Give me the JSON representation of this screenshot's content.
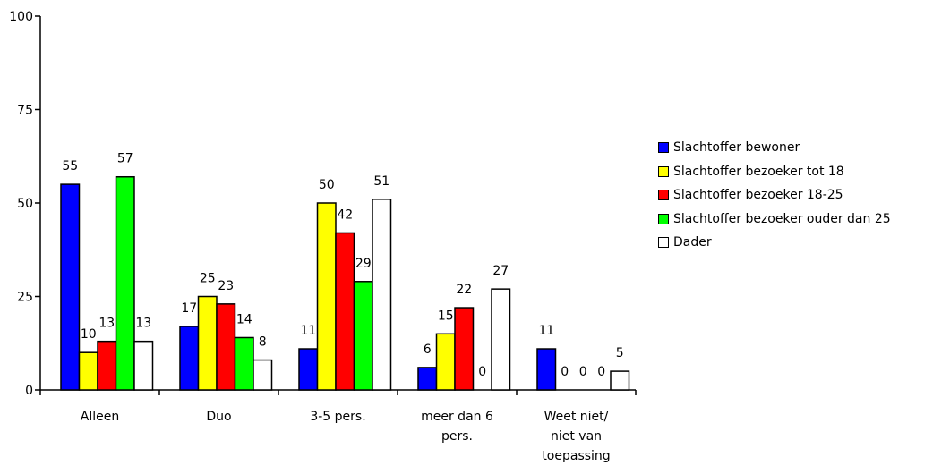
{
  "chart_data": {
    "type": "bar",
    "title": "",
    "xlabel": "",
    "ylabel": "",
    "ylim": [
      0,
      100
    ],
    "yticks": [
      0,
      25,
      50,
      75,
      100
    ],
    "grid": false,
    "legend_position": "right",
    "categories": [
      [
        "Alleen"
      ],
      [
        "Duo"
      ],
      [
        "3-5 pers."
      ],
      [
        "meer dan 6",
        "pers."
      ],
      [
        "Weet niet/",
        "niet van",
        "toepassing"
      ]
    ],
    "series": [
      {
        "name": "Slachtoffer bewoner",
        "color": "#0000ff",
        "values": [
          55,
          17,
          11,
          6,
          11
        ]
      },
      {
        "name": "Slachtoffer bezoeker tot 18",
        "color": "#ffff00",
        "values": [
          10,
          25,
          50,
          15,
          0
        ]
      },
      {
        "name": "Slachtoffer bezoeker 18-25",
        "color": "#ff0000",
        "values": [
          13,
          23,
          42,
          22,
          0
        ]
      },
      {
        "name": "Slachtoffer bezoeker ouder dan 25",
        "color": "#00ff00",
        "values": [
          57,
          14,
          29,
          0,
          0
        ]
      },
      {
        "name": "Dader",
        "color": "#ffffff",
        "values": [
          13,
          8,
          51,
          27,
          5
        ]
      }
    ]
  }
}
